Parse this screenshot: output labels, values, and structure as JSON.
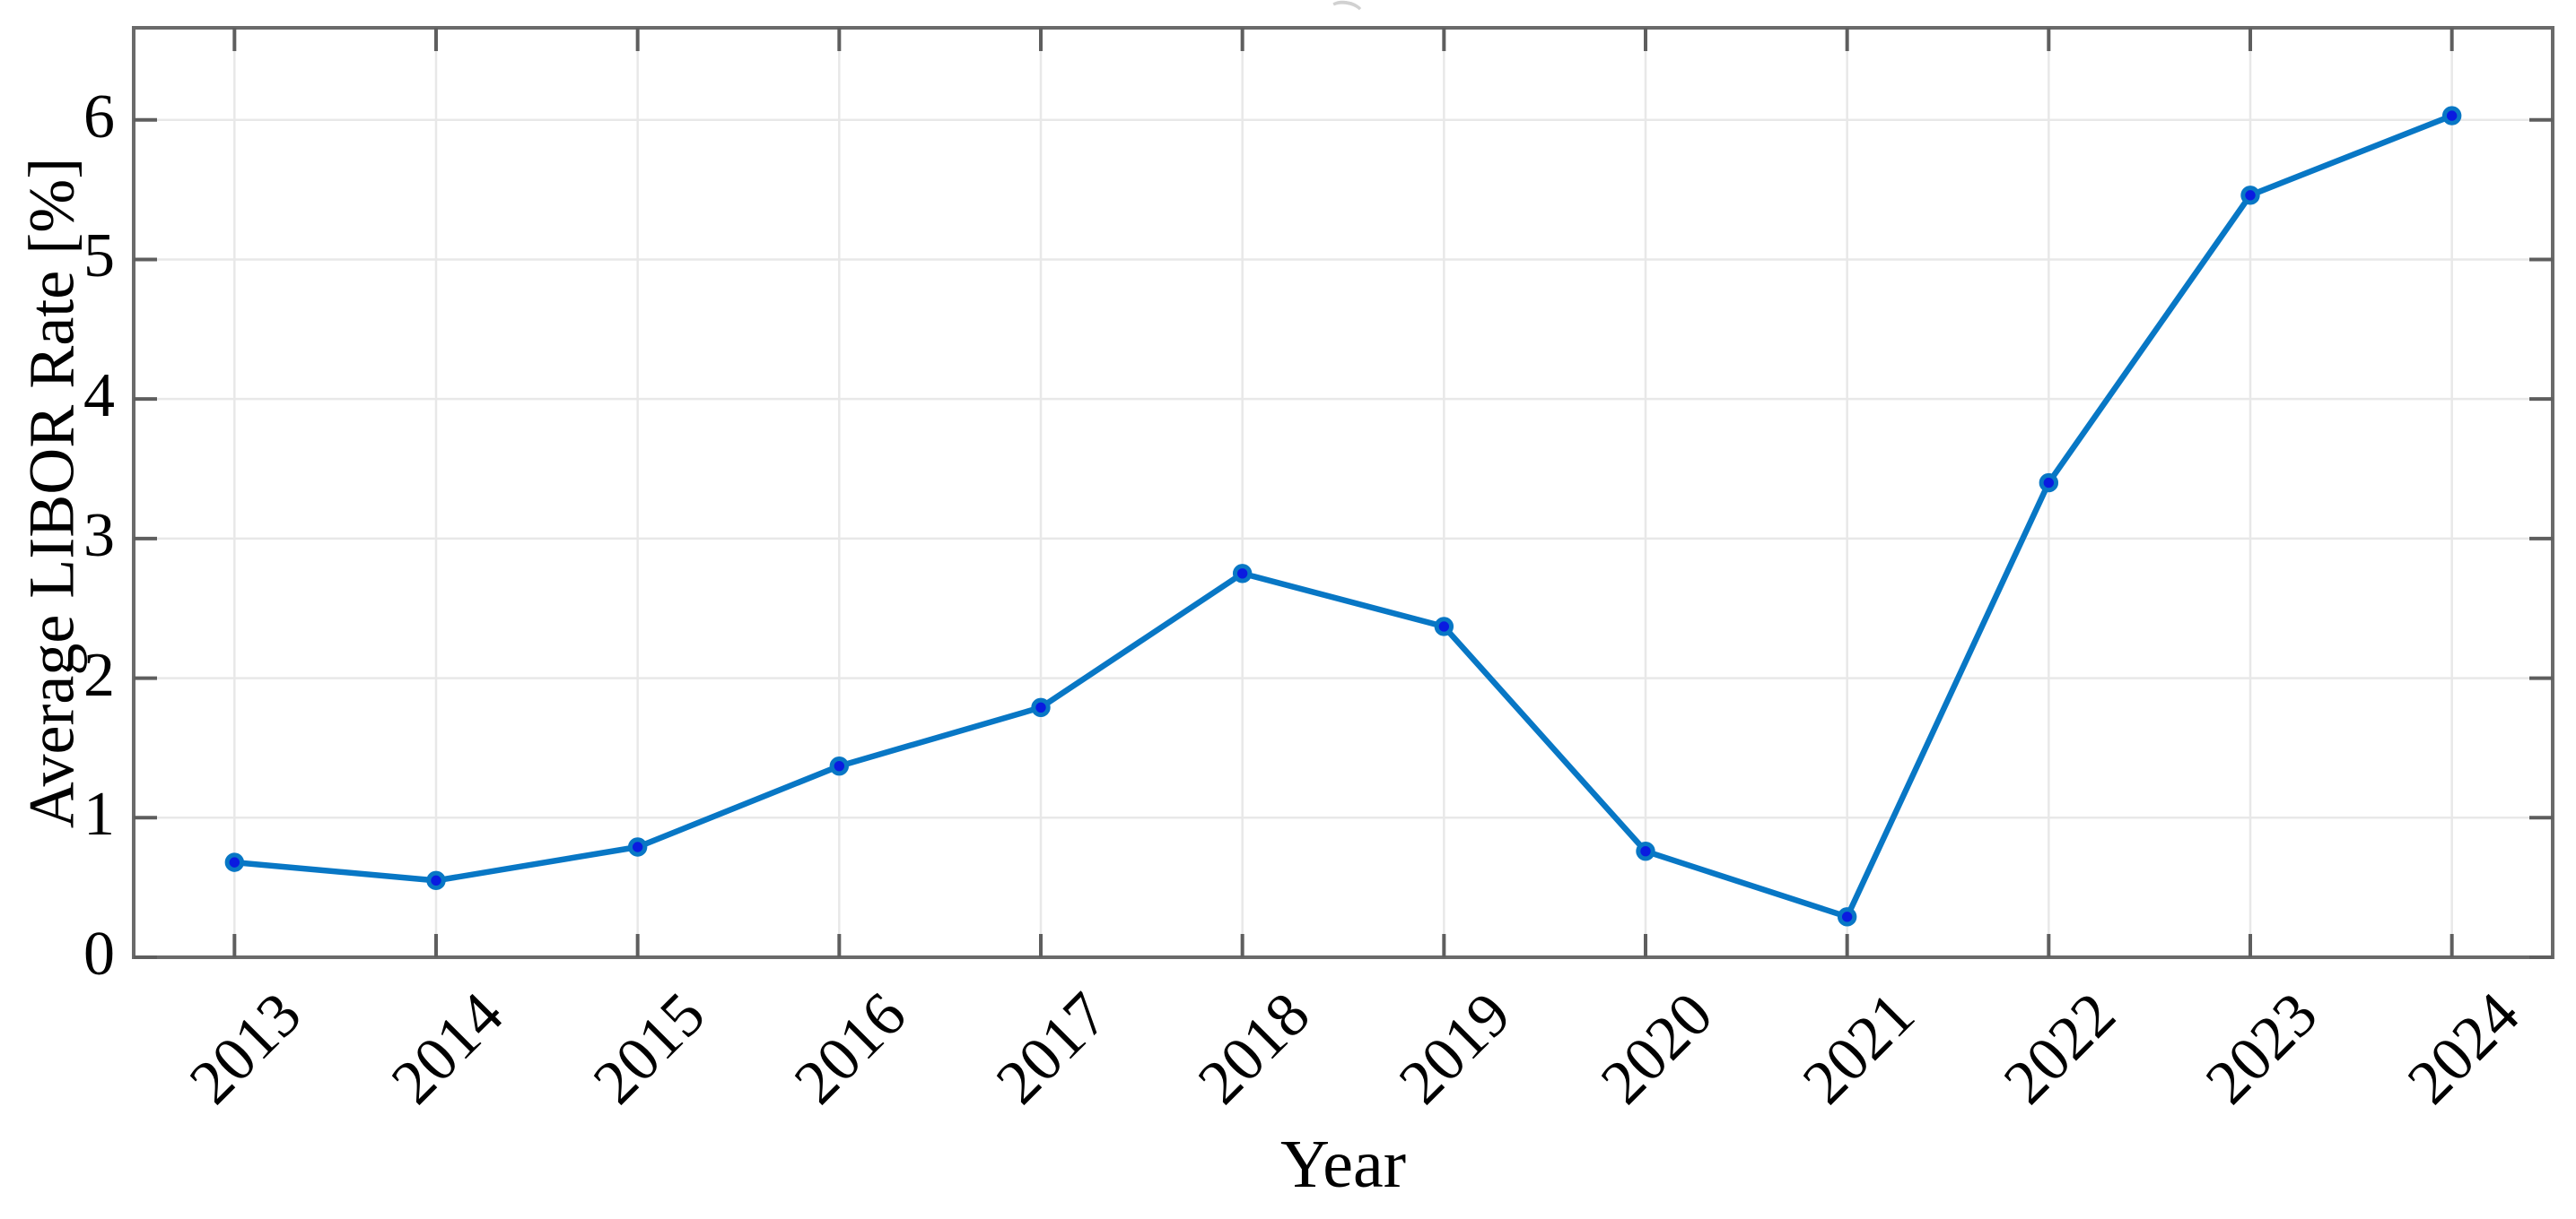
{
  "chart_data": {
    "type": "line",
    "title": "",
    "xlabel": "Year",
    "ylabel": "Average LIBOR Rate [%]",
    "x": [
      2013,
      2014,
      2015,
      2016,
      2017,
      2018,
      2019,
      2020,
      2021,
      2022,
      2023,
      2024
    ],
    "x_tick_labels": [
      "2013",
      "2014",
      "2015",
      "2016",
      "2017",
      "2018",
      "2019",
      "2020",
      "2021",
      "2022",
      "2023",
      "2024"
    ],
    "series": [
      {
        "name": "Average LIBOR Rate",
        "values": [
          0.68,
          0.55,
          0.79,
          1.37,
          1.79,
          2.75,
          2.37,
          0.76,
          0.29,
          3.4,
          5.46,
          6.03
        ]
      }
    ],
    "yticks": [
      0,
      1,
      2,
      3,
      4,
      5,
      6
    ],
    "y_tick_labels": [
      "0",
      "1",
      "2",
      "3",
      "4",
      "5",
      "6"
    ],
    "xlim": [
      2012.5,
      2024.5
    ],
    "ylim": [
      0,
      6.66
    ],
    "grid": true,
    "legend_position": "none",
    "colors": {
      "line": "#0877C5",
      "marker_face": "#0A1BE0",
      "marker_edge": "#0877C5",
      "grid": "#E8E8E8",
      "axis_box": "#6A6A6A",
      "tick": "#5E5E5E",
      "text": "#000000",
      "background": "#FFFFFF"
    }
  }
}
